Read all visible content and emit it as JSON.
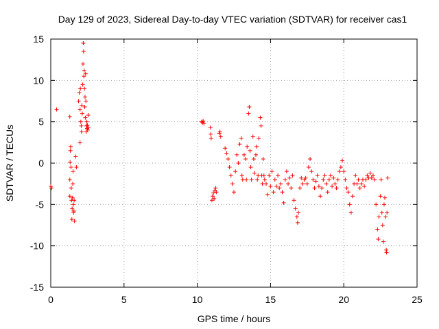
{
  "chart_data": {
    "type": "scatter",
    "title": "Day 129 of 2023, Sidereal Day-to-day VTEC variation (SDTVAR) for receiver cas1",
    "xlabel": "GPS time / hours",
    "ylabel": "SDTVAR / TECUs",
    "xlim": [
      0,
      25
    ],
    "ylim": [
      -15,
      15
    ],
    "x_ticks": [
      0,
      5,
      10,
      15,
      20,
      25
    ],
    "y_ticks": [
      -15,
      -10,
      -5,
      0,
      5,
      10,
      15
    ],
    "x_tick_labels": [
      "0",
      "5",
      "10",
      "15",
      "20",
      "25"
    ],
    "y_tick_labels": [
      "-15",
      "-10",
      "-5",
      "0",
      "5",
      "10",
      "15"
    ],
    "grid": true,
    "marker": "plus",
    "color": "#ff0000",
    "series": [
      {
        "name": "cas1",
        "points": [
          [
            0.0,
            -2.8
          ],
          [
            0.05,
            -3.0
          ],
          [
            0.4,
            6.5
          ],
          [
            1.3,
            5.6
          ],
          [
            1.3,
            -4.0
          ],
          [
            1.3,
            -2.0
          ],
          [
            1.32,
            0.1
          ],
          [
            1.34,
            1.5
          ],
          [
            1.36,
            2.0
          ],
          [
            1.38,
            -0.5
          ],
          [
            1.4,
            -3.0
          ],
          [
            1.42,
            -4.5
          ],
          [
            1.44,
            -6.8
          ],
          [
            1.46,
            -5.5
          ],
          [
            1.48,
            -4.2
          ],
          [
            1.5,
            -2.5
          ],
          [
            1.52,
            -1.0
          ],
          [
            1.54,
            -5.0
          ],
          [
            1.56,
            -6.0
          ],
          [
            1.58,
            -5.8
          ],
          [
            1.6,
            -4.5
          ],
          [
            1.62,
            -7.0
          ],
          [
            1.7,
            0.8
          ],
          [
            1.75,
            -0.5
          ],
          [
            1.9,
            7.5
          ],
          [
            1.95,
            8.5
          ],
          [
            2.0,
            2.5
          ],
          [
            2.0,
            6.5
          ],
          [
            2.02,
            9.0
          ],
          [
            2.05,
            5.0
          ],
          [
            2.08,
            4.5
          ],
          [
            2.1,
            3.8
          ],
          [
            2.12,
            7.0
          ],
          [
            2.15,
            6.0
          ],
          [
            2.18,
            9.5
          ],
          [
            2.2,
            12.0
          ],
          [
            2.22,
            14.5
          ],
          [
            2.24,
            13.5
          ],
          [
            2.26,
            10.5
          ],
          [
            2.28,
            11.2
          ],
          [
            2.3,
            9.0
          ],
          [
            2.32,
            6.8
          ],
          [
            2.34,
            8.0
          ],
          [
            2.36,
            5.5
          ],
          [
            2.38,
            10.8
          ],
          [
            2.4,
            7.5
          ],
          [
            2.42,
            3.8
          ],
          [
            2.44,
            4.5
          ],
          [
            2.46,
            5.0
          ],
          [
            2.48,
            4.2
          ],
          [
            2.5,
            4.6
          ],
          [
            2.52,
            4.0
          ],
          [
            2.55,
            5.8
          ],
          [
            2.57,
            4.3
          ],
          [
            10.3,
            5.0
          ],
          [
            10.35,
            4.9
          ],
          [
            10.4,
            5.1
          ],
          [
            10.45,
            4.8
          ],
          [
            10.9,
            4.3
          ],
          [
            10.92,
            3.5
          ],
          [
            10.95,
            3.0
          ],
          [
            11.0,
            -4.5
          ],
          [
            11.05,
            -4.0
          ],
          [
            11.1,
            -3.6
          ],
          [
            11.15,
            -4.3
          ],
          [
            11.2,
            -3.3
          ],
          [
            11.25,
            -3.0
          ],
          [
            11.3,
            -3.5
          ],
          [
            11.5,
            3.6
          ],
          [
            11.55,
            3.8
          ],
          [
            11.6,
            3.2
          ],
          [
            11.9,
            1.8
          ],
          [
            12.0,
            1.2
          ],
          [
            12.1,
            0.5
          ],
          [
            12.2,
            -0.5
          ],
          [
            12.3,
            -1.5
          ],
          [
            12.4,
            -2.5
          ],
          [
            12.5,
            -3.5
          ],
          [
            12.6,
            -1.0
          ],
          [
            12.7,
            1.0
          ],
          [
            12.8,
            0.0
          ],
          [
            12.9,
            2.3
          ],
          [
            13.0,
            3.0
          ],
          [
            13.05,
            -1.5
          ],
          [
            13.1,
            -2.0
          ],
          [
            13.2,
            1.0
          ],
          [
            13.3,
            0.5
          ],
          [
            13.35,
            -2.0
          ],
          [
            13.4,
            2.0
          ],
          [
            13.5,
            6.0
          ],
          [
            13.55,
            6.8
          ],
          [
            13.6,
            1.5
          ],
          [
            13.65,
            -0.5
          ],
          [
            13.7,
            -2.0
          ],
          [
            13.8,
            3.2
          ],
          [
            13.85,
            0.5
          ],
          [
            13.9,
            -1.2
          ],
          [
            14.0,
            1.0
          ],
          [
            14.05,
            2.0
          ],
          [
            14.1,
            -2.0
          ],
          [
            14.15,
            -1.5
          ],
          [
            14.2,
            3.0
          ],
          [
            14.3,
            5.5
          ],
          [
            14.35,
            4.5
          ],
          [
            14.4,
            -1.5
          ],
          [
            14.45,
            -2.5
          ],
          [
            14.5,
            0.5
          ],
          [
            14.55,
            -1.5
          ],
          [
            14.6,
            -2.0
          ],
          [
            14.7,
            -2.5
          ],
          [
            14.8,
            -3.8
          ],
          [
            14.9,
            -1.5
          ],
          [
            15.0,
            -2.8
          ],
          [
            15.1,
            -1.0
          ],
          [
            15.2,
            -3.5
          ],
          [
            15.3,
            -2.0
          ],
          [
            15.4,
            -2.8
          ],
          [
            15.5,
            -1.5
          ],
          [
            15.6,
            -3.0
          ],
          [
            15.7,
            -2.5
          ],
          [
            15.8,
            -3.5
          ],
          [
            15.9,
            -4.8
          ],
          [
            16.0,
            -2.0
          ],
          [
            16.1,
            -1.0
          ],
          [
            16.2,
            -2.5
          ],
          [
            16.3,
            -1.8
          ],
          [
            16.4,
            -3.0
          ],
          [
            16.5,
            -1.5
          ],
          [
            16.6,
            -4.5
          ],
          [
            16.7,
            -5.5
          ],
          [
            16.8,
            -6.5
          ],
          [
            16.85,
            -7.2
          ],
          [
            16.9,
            -6.0
          ],
          [
            17.0,
            -3.0
          ],
          [
            17.1,
            -1.8
          ],
          [
            17.2,
            -2.5
          ],
          [
            17.3,
            -2.0
          ],
          [
            17.4,
            -1.8
          ],
          [
            17.5,
            -2.5
          ],
          [
            17.6,
            -0.5
          ],
          [
            17.7,
            0.5
          ],
          [
            17.8,
            -1.0
          ],
          [
            17.9,
            -2.0
          ],
          [
            18.0,
            -3.0
          ],
          [
            18.1,
            -2.2
          ],
          [
            18.2,
            -1.5
          ],
          [
            18.3,
            -2.8
          ],
          [
            18.4,
            -4.0
          ],
          [
            18.5,
            -3.0
          ],
          [
            18.6,
            -2.0
          ],
          [
            18.7,
            -1.5
          ],
          [
            18.8,
            -2.5
          ],
          [
            18.9,
            -3.5
          ],
          [
            19.0,
            -2.0
          ],
          [
            19.1,
            -1.5
          ],
          [
            19.2,
            -2.8
          ],
          [
            19.3,
            -1.8
          ],
          [
            19.4,
            -2.5
          ],
          [
            19.5,
            -3.0
          ],
          [
            19.6,
            -2.0
          ],
          [
            19.7,
            -1.0
          ],
          [
            19.8,
            -0.5
          ],
          [
            19.9,
            0.3
          ],
          [
            20.0,
            -1.0
          ],
          [
            20.1,
            -2.0
          ],
          [
            20.2,
            -3.0
          ],
          [
            20.3,
            -3.5
          ],
          [
            20.4,
            -5.0
          ],
          [
            20.5,
            -6.0
          ],
          [
            20.6,
            -4.0
          ],
          [
            20.7,
            -2.5
          ],
          [
            20.8,
            -1.5
          ],
          [
            20.9,
            -2.5
          ],
          [
            21.0,
            -2.0
          ],
          [
            21.1,
            -3.0
          ],
          [
            21.2,
            -2.5
          ],
          [
            21.3,
            -2.0
          ],
          [
            21.4,
            -2.8
          ],
          [
            21.5,
            -2.0
          ],
          [
            21.6,
            -1.5
          ],
          [
            21.7,
            -1.8
          ],
          [
            21.8,
            -1.2
          ],
          [
            21.9,
            -1.8
          ],
          [
            22.0,
            -1.5
          ],
          [
            22.1,
            -2.0
          ],
          [
            22.2,
            -5.0
          ],
          [
            22.3,
            -8.0
          ],
          [
            22.35,
            -9.2
          ],
          [
            22.4,
            -6.5
          ],
          [
            22.5,
            -4.0
          ],
          [
            22.55,
            -2.0
          ],
          [
            22.6,
            -6.0
          ],
          [
            22.65,
            -7.5
          ],
          [
            22.7,
            -9.5
          ],
          [
            22.75,
            -5.0
          ],
          [
            22.8,
            -4.2
          ],
          [
            22.85,
            -6.5
          ],
          [
            22.9,
            -10.5
          ],
          [
            22.92,
            -10.8
          ],
          [
            22.95,
            -6.0
          ],
          [
            23.0,
            -1.8
          ]
        ]
      }
    ]
  }
}
